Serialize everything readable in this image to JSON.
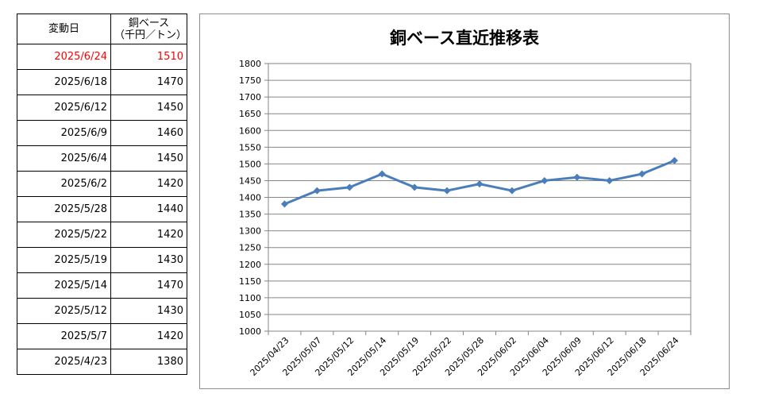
{
  "table": {
    "header_date": "変動日",
    "header_price_line1": "銅ベース",
    "header_price_line2": "（千円／トン）",
    "rows": [
      {
        "date": "2025/6/24",
        "price": "1510"
      },
      {
        "date": "2025/6/18",
        "price": "1470"
      },
      {
        "date": "2025/6/12",
        "price": "1450"
      },
      {
        "date": "2025/6/9",
        "price": "1460"
      },
      {
        "date": "2025/6/4",
        "price": "1450"
      },
      {
        "date": "2025/6/2",
        "price": "1420"
      },
      {
        "date": "2025/5/28",
        "price": "1440"
      },
      {
        "date": "2025/5/22",
        "price": "1420"
      },
      {
        "date": "2025/5/19",
        "price": "1430"
      },
      {
        "date": "2025/5/14",
        "price": "1470"
      },
      {
        "date": "2025/5/12",
        "price": "1430"
      },
      {
        "date": "2025/5/7",
        "price": "1420"
      },
      {
        "date": "2025/4/23",
        "price": "1380"
      }
    ],
    "highlight_color": "#ff0000"
  },
  "chart_data": {
    "type": "line",
    "title": "銅ベース直近推移表",
    "xlabel": "",
    "ylabel": "",
    "categories": [
      "2025/04/23",
      "2025/05/07",
      "2025/05/12",
      "2025/05/14",
      "2025/05/19",
      "2025/05/22",
      "2025/05/28",
      "2025/06/02",
      "2025/06/04",
      "2025/06/09",
      "2025/06/12",
      "2025/06/18",
      "2025/06/24"
    ],
    "series": [
      {
        "values": [
          1380,
          1420,
          1430,
          1470,
          1430,
          1420,
          1440,
          1420,
          1450,
          1460,
          1450,
          1470,
          1510
        ],
        "color": "#4a7ebb",
        "marker": "diamond"
      }
    ],
    "ylim": [
      1000,
      1800
    ],
    "ytick_step": 50,
    "grid": true,
    "legend": "none"
  }
}
